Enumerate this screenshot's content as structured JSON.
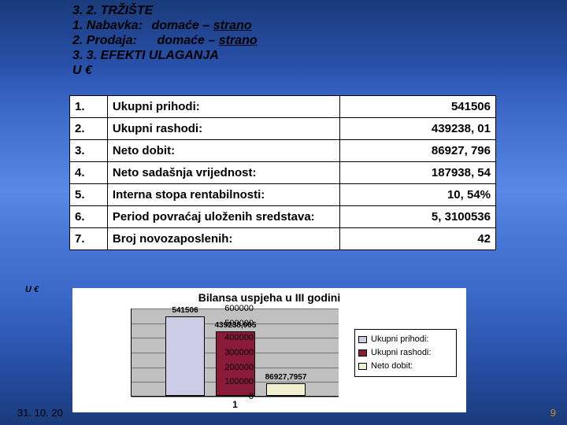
{
  "header": {
    "section_title": "3. 2. TRŽIŠTE",
    "line1_label": "1. Nabavka:",
    "line1_a": "domaće",
    "line1_sep": " – ",
    "line1_b": "strano",
    "line2_label": "2. Prodaja:",
    "line2_a": "domaće",
    "line2_sep": " – ",
    "line2_b": "strano",
    "section2_title": "3. 3. EFEKTI ULAGANJA",
    "unit": "U €"
  },
  "table": {
    "rows": [
      {
        "num": "1.",
        "label": "Ukupni prihodi:",
        "value": "541506"
      },
      {
        "num": "2.",
        "label": "Ukupni rashodi:",
        "value": "439238, 01"
      },
      {
        "num": "3.",
        "label": "Neto dobit:",
        "value": "86927, 796"
      },
      {
        "num": "4.",
        "label": "Neto sadašnja vrijednost:",
        "value": "187938, 54"
      },
      {
        "num": "5.",
        "label": "Interna stopa rentabilnosti:",
        "value": "10, 54%"
      },
      {
        "num": "6.",
        "label": "Period povraćaj uloženih sredstava:",
        "value": "5, 3100536"
      },
      {
        "num": "7.",
        "label": "Broj novozaposlenih:",
        "value": "42"
      }
    ]
  },
  "chart": {
    "unit_label": "U €",
    "title": "Bilansa uspjeha u III godini",
    "type": "bar",
    "xlabel": "1",
    "ylim_max": 600000,
    "yticks": [
      "0",
      "100000",
      "200000",
      "300000",
      "400000",
      "500000",
      "600000"
    ],
    "bars": [
      {
        "label": "541506",
        "value": 541506,
        "color": "#cccce6"
      },
      {
        "label": "439238,005",
        "value": 439238.005,
        "color": "#8a1a3a"
      },
      {
        "label": "86927,7957",
        "value": 86927.7957,
        "color": "#f0efcf"
      }
    ],
    "legend": [
      {
        "color": "#cccce6",
        "label": "Ukupni prihodi:"
      },
      {
        "color": "#8a1a3a",
        "label": "Ukupni rashodi:"
      },
      {
        "color": "#f0efcf",
        "label": "Neto dobit:"
      }
    ],
    "grid_color": "#000000",
    "plot_bg": "#c0c0c0"
  },
  "footer": {
    "date": "31. 10. 20",
    "page": "9"
  }
}
